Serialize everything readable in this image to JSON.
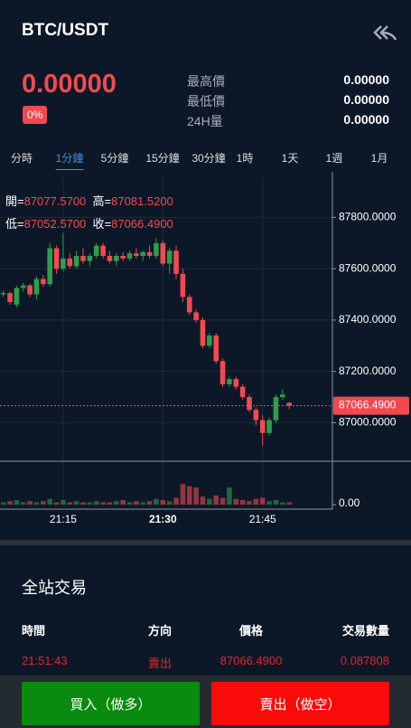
{
  "header": {
    "title": "BTC/USDT"
  },
  "price": {
    "value": "0.00000",
    "change": "0%"
  },
  "stats": [
    {
      "label": "最高價",
      "value": "0.00000"
    },
    {
      "label": "最低價",
      "value": "0.00000"
    },
    {
      "label": "24H量",
      "value": "0.00000"
    }
  ],
  "timeframes": {
    "items": [
      "分時",
      "1分鐘",
      "5分鐘",
      "15分鐘",
      "30分鐘",
      "1時",
      "1天",
      "1週",
      "1月"
    ],
    "active": 1
  },
  "ohlc_legend": {
    "open_label": "開=",
    "open": "87077.5700",
    "high_label": "高=",
    "high": "87081.5200",
    "low_label": "低=",
    "low": "87052.5700",
    "close_label": "收=",
    "close": "87066.4900"
  },
  "chart_data": {
    "type": "candlestick",
    "categories": [
      null,
      null,
      null,
      null,
      null,
      null,
      null,
      null,
      null,
      "21:15",
      null,
      null,
      null,
      null,
      null,
      null,
      null,
      null,
      null,
      null,
      null,
      null,
      null,
      null,
      "21:30",
      null,
      null,
      null,
      null,
      null,
      null,
      null,
      null,
      null,
      null,
      null,
      null,
      null,
      null,
      "21:45",
      null,
      null,
      null,
      null
    ],
    "open": [
      87500,
      87505,
      87460,
      87525,
      87535,
      87500,
      87560,
      87540,
      87680,
      87600,
      87640,
      87610,
      87650,
      87630,
      87650,
      87690,
      87650,
      87630,
      87650,
      87640,
      87660,
      87650,
      87665,
      87650,
      87700,
      87620,
      87670,
      87580,
      87490,
      87430,
      87400,
      87300,
      87340,
      87240,
      87150,
      87170,
      87140,
      87100,
      87050,
      87010,
      86960,
      87010,
      87100,
      87077.57
    ],
    "high": [
      87515,
      87510,
      87535,
      87545,
      87540,
      87570,
      87575,
      87700,
      87690,
      87740,
      87660,
      87670,
      87680,
      87660,
      87700,
      87700,
      87670,
      87660,
      87665,
      87670,
      87680,
      87670,
      87690,
      87720,
      87710,
      87680,
      87690,
      87600,
      87500,
      87440,
      87410,
      87350,
      87350,
      87250,
      87180,
      87180,
      87150,
      87110,
      87060,
      87030,
      87020,
      87110,
      87130,
      87081.52
    ],
    "low": [
      87490,
      87460,
      87450,
      87510,
      87490,
      87480,
      87530,
      87530,
      87580,
      87590,
      87600,
      87600,
      87620,
      87610,
      87640,
      87640,
      87620,
      87610,
      87630,
      87630,
      87640,
      87630,
      87640,
      87640,
      87610,
      87580,
      87560,
      87470,
      87420,
      87390,
      87290,
      87290,
      87230,
      87140,
      87140,
      87130,
      87090,
      87040,
      86990,
      86910,
      86950,
      87000,
      87090,
      87052.57
    ],
    "close": [
      87505,
      87470,
      87525,
      87535,
      87500,
      87560,
      87540,
      87680,
      87600,
      87640,
      87610,
      87650,
      87630,
      87650,
      87690,
      87650,
      87630,
      87650,
      87640,
      87660,
      87650,
      87665,
      87650,
      87700,
      87620,
      87670,
      87580,
      87490,
      87430,
      87400,
      87300,
      87340,
      87240,
      87150,
      87170,
      87140,
      87100,
      87050,
      87010,
      86960,
      87010,
      87100,
      87110,
      87066.49
    ],
    "volume": [
      2,
      3,
      4,
      2,
      3,
      2,
      3,
      5,
      2,
      4,
      2,
      3,
      2,
      2,
      3,
      2,
      2,
      3,
      4,
      2,
      3,
      2,
      3,
      5,
      4,
      3,
      6,
      18,
      16,
      15,
      7,
      5,
      8,
      6,
      15,
      5,
      4,
      3,
      5,
      6,
      3,
      4,
      2,
      2
    ],
    "up_color": "#2e9e4a",
    "down_color": "#f2494f",
    "ylim": [
      86850,
      87960
    ],
    "yticks": [
      {
        "value": 87000,
        "label": "87000.0000"
      },
      {
        "value": 87200,
        "label": "87200.0000"
      },
      {
        "value": 87400,
        "label": "87400.0000"
      },
      {
        "value": 87600,
        "label": "87600.0000"
      },
      {
        "value": 87800,
        "label": "87800.0000"
      }
    ],
    "current_price": {
      "value": 87066.49,
      "label": "87066.4900"
    },
    "volume_ylim": [
      0,
      30
    ],
    "volume_yticks": [
      {
        "value": 0,
        "label": "0.00"
      }
    ],
    "grid": true
  },
  "trades": {
    "title": "全站交易",
    "columns": [
      "時間",
      "方向",
      "價格",
      "交易數量"
    ],
    "rows": [
      [
        "21:51:43",
        "賣出",
        "87066.4900",
        "0.087808"
      ]
    ]
  },
  "buttons": {
    "buy": "買入（做多）",
    "sell": "賣出（做空）"
  }
}
